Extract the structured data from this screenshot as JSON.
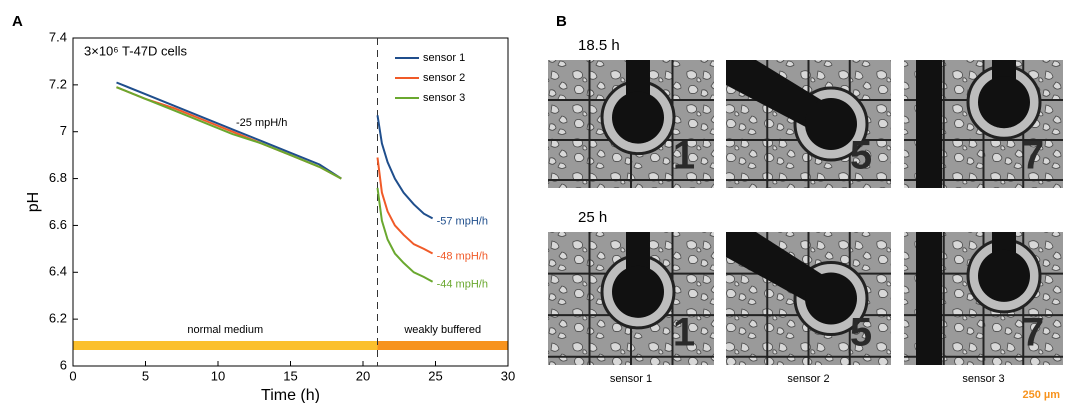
{
  "chart_data": {
    "type": "line",
    "panel_label": "A",
    "annotation": "3×10⁶ T-47D cells",
    "slope_label": "-25 mpH/h",
    "xlabel": "Time (h)",
    "ylabel": "pH",
    "x": [
      3,
      5,
      7,
      9,
      11,
      13,
      15,
      17,
      18.5,
      20,
      21,
      21.3,
      21.7,
      22.2,
      22.8,
      23.5,
      24.2,
      24.8
    ],
    "series": [
      {
        "name": "sensor 1",
        "color": "#1f4e8c",
        "rate_label": "-57 mpH/h",
        "values": [
          7.21,
          7.16,
          7.11,
          7.06,
          7.01,
          6.96,
          6.91,
          6.86,
          6.8,
          null,
          7.07,
          6.95,
          6.87,
          6.8,
          6.74,
          6.69,
          6.65,
          6.63
        ]
      },
      {
        "name": "sensor 2",
        "color": "#f05a28",
        "rate_label": "-48 mpH/h",
        "values": [
          7.19,
          7.14,
          7.1,
          7.05,
          7.0,
          6.95,
          6.9,
          6.85,
          6.8,
          null,
          6.89,
          6.74,
          6.66,
          6.6,
          6.56,
          6.52,
          6.5,
          6.48
        ]
      },
      {
        "name": "sensor 3",
        "color": "#6aa82f",
        "rate_label": "-44 mpH/h",
        "values": [
          7.19,
          7.14,
          7.09,
          7.04,
          6.99,
          6.95,
          6.9,
          6.85,
          6.8,
          null,
          6.76,
          6.62,
          6.54,
          6.48,
          6.44,
          6.4,
          6.38,
          6.36
        ]
      }
    ],
    "divider_x": 21,
    "regions": [
      {
        "label": "normal medium",
        "start": 0,
        "end": 21,
        "color": "#fbc02d"
      },
      {
        "label": "weakly buffered",
        "start": 21,
        "end": 30,
        "color": "#f7931e"
      }
    ],
    "xlim": [
      0,
      30
    ],
    "xticks": [
      0,
      5,
      10,
      15,
      20,
      25,
      30
    ],
    "ylim": [
      6,
      7.4
    ],
    "yticks": [
      6,
      6.2,
      6.4,
      6.6,
      6.8,
      7,
      7.2,
      7.4
    ],
    "legend": "upper right"
  },
  "panel_b": {
    "panel_label": "B",
    "rows": [
      "18.5 h",
      "25 h"
    ],
    "columns": [
      "sensor 1",
      "sensor 2",
      "sensor 3"
    ],
    "image_numbers": [
      "1",
      "5",
      "7"
    ],
    "scale_bar": "250 µm"
  }
}
